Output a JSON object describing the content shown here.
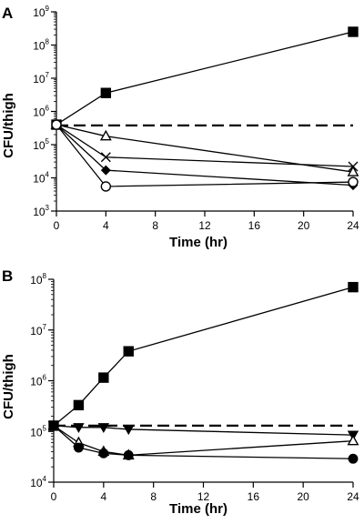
{
  "chart_data": [
    {
      "type": "line",
      "panel_label": "A",
      "xlabel": "Time (hr)",
      "ylabel": "CFU/thigh",
      "y_scale": "log",
      "xlim": [
        0,
        24
      ],
      "ylim": [
        1000,
        1000000000
      ],
      "x_ticks": [
        "0",
        "4",
        "8",
        "12",
        "16",
        "20",
        "24"
      ],
      "y_ticks": [
        {
          "base": "10",
          "exp": "3",
          "value": 1000
        },
        {
          "base": "10",
          "exp": "4",
          "value": 10000
        },
        {
          "base": "10",
          "exp": "5",
          "value": 100000
        },
        {
          "base": "10",
          "exp": "6",
          "value": 1000000
        },
        {
          "base": "10",
          "exp": "7",
          "value": 10000000
        },
        {
          "base": "10",
          "exp": "8",
          "value": 100000000
        },
        {
          "base": "10",
          "exp": "9",
          "value": 1000000000
        }
      ],
      "reference_line": {
        "y": 380000,
        "style": "dashed"
      },
      "grid": false,
      "series": [
        {
          "marker": "square-filled",
          "x": [
            0,
            4,
            24
          ],
          "y": [
            400000,
            3600000,
            250000000
          ]
        },
        {
          "marker": "triangle-open",
          "x": [
            0,
            4,
            24
          ],
          "y": [
            400000,
            180000,
            15000
          ]
        },
        {
          "marker": "x",
          "x": [
            0,
            4,
            24
          ],
          "y": [
            400000,
            42000,
            22000
          ]
        },
        {
          "marker": "diamond-filled",
          "x": [
            0,
            4,
            24
          ],
          "y": [
            400000,
            17000,
            6000
          ]
        },
        {
          "marker": "circle-open",
          "x": [
            0,
            4,
            24
          ],
          "y": [
            400000,
            5500,
            7500
          ]
        }
      ]
    },
    {
      "type": "line",
      "panel_label": "B",
      "xlabel": "Time (hr)",
      "ylabel": "CFU/thigh",
      "y_scale": "log",
      "xlim": [
        0,
        24
      ],
      "ylim": [
        10000,
        100000000
      ],
      "x_ticks": [
        "0",
        "4",
        "8",
        "12",
        "16",
        "20",
        "24"
      ],
      "y_ticks": [
        {
          "base": "10",
          "exp": "4",
          "value": 10000
        },
        {
          "base": "10",
          "exp": "5",
          "value": 100000
        },
        {
          "base": "10",
          "exp": "6",
          "value": 1000000
        },
        {
          "base": "10",
          "exp": "7",
          "value": 10000000
        },
        {
          "base": "10",
          "exp": "8",
          "value": 100000000
        }
      ],
      "reference_line": {
        "y": 130000,
        "style": "dashed"
      },
      "grid": false,
      "series": [
        {
          "marker": "square-filled",
          "x": [
            0,
            2,
            4,
            6,
            24
          ],
          "y": [
            130000,
            330000,
            1150000,
            3800000,
            70000000
          ]
        },
        {
          "marker": "triangle-down-filled",
          "x": [
            0,
            2,
            4,
            6,
            24
          ],
          "y": [
            130000,
            120000,
            120000,
            110000,
            85000
          ]
        },
        {
          "marker": "triangle-open",
          "x": [
            0,
            2,
            4,
            6,
            24
          ],
          "y": [
            130000,
            60000,
            40000,
            34000,
            65000
          ]
        },
        {
          "marker": "circle-filled",
          "x": [
            0,
            2,
            4,
            6,
            24
          ],
          "y": [
            130000,
            48000,
            37000,
            34000,
            29000
          ]
        }
      ]
    }
  ]
}
